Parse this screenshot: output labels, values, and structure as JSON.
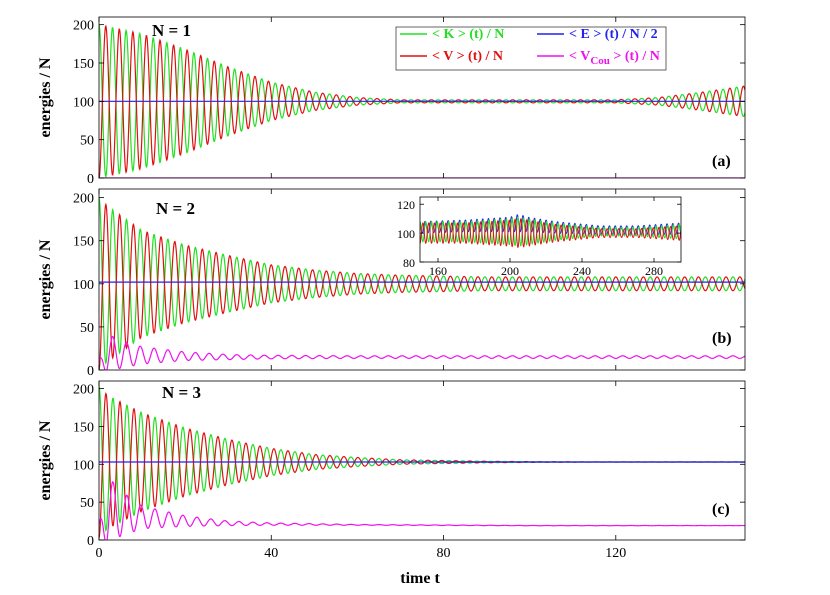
{
  "colors": {
    "kinetic": "#22e022",
    "potential": "#e01010",
    "total": "#2222ee",
    "coulomb": "#ee11ee"
  },
  "legend": [
    {
      "key": "kinetic",
      "text": "< K > (t) / N"
    },
    {
      "key": "total",
      "text": "< E > (t) / N / 2"
    },
    {
      "key": "potential",
      "text": "< V > (t) / N"
    },
    {
      "key": "coulomb",
      "text_pre": "< V",
      "text_sub": "Cou",
      "text_post": " > (t) / N"
    }
  ],
  "xlabel": "time t",
  "chart_data": [
    {
      "type": "line",
      "title": "N = 1",
      "panel_label": "(a)",
      "ylabel": "energies / N",
      "xlim": [
        0,
        150
      ],
      "ylim": [
        0,
        210
      ],
      "xticks": [
        "0",
        "40",
        "80",
        "120"
      ],
      "xtick_values": [
        0,
        40,
        80,
        120
      ],
      "yticks": [
        "0",
        "50",
        "100",
        "150",
        "200"
      ],
      "ytick_values": [
        0,
        50,
        100,
        150,
        200
      ],
      "period": 3.15,
      "series": [
        {
          "key": "kinetic",
          "x": [
            0,
            10,
            20,
            30,
            40,
            50,
            60,
            70,
            80,
            90,
            100,
            110,
            120,
            130,
            140,
            150
          ],
          "center": [
            100,
            100,
            100,
            100,
            100,
            100,
            100,
            100,
            100,
            100,
            100,
            100,
            100,
            100,
            100,
            100
          ],
          "amplitude": [
            100,
            88,
            68,
            45,
            25,
            12,
            5,
            2,
            2,
            2,
            2,
            2,
            2,
            5,
            12,
            20
          ],
          "phase": 0
        },
        {
          "key": "potential",
          "x": [
            0,
            10,
            20,
            30,
            40,
            50,
            60,
            70,
            80,
            90,
            100,
            110,
            120,
            130,
            140,
            150
          ],
          "center": [
            100,
            100,
            100,
            100,
            100,
            100,
            100,
            100,
            100,
            100,
            100,
            100,
            100,
            100,
            100,
            100
          ],
          "amplitude": [
            100,
            88,
            68,
            45,
            25,
            12,
            5,
            2,
            2,
            2,
            2,
            2,
            2,
            5,
            12,
            20
          ],
          "phase": 180
        },
        {
          "key": "total",
          "x": [
            0,
            150
          ],
          "values": [
            100,
            100
          ]
        },
        {
          "key": "coulomb",
          "x": [
            0,
            150
          ],
          "values": [
            0,
            0
          ]
        }
      ]
    },
    {
      "type": "line",
      "title": "N = 2",
      "panel_label": "(b)",
      "ylabel": "energies / N",
      "xlim": [
        0,
        150
      ],
      "ylim": [
        0,
        210
      ],
      "xticks": [
        "0",
        "40",
        "80",
        "120"
      ],
      "xtick_values": [
        0,
        40,
        80,
        120
      ],
      "yticks": [
        "0",
        "50",
        "100",
        "150",
        "200"
      ],
      "ytick_values": [
        0,
        50,
        100,
        150,
        200
      ],
      "period": 3.2,
      "series": [
        {
          "key": "kinetic",
          "x": [
            0,
            2,
            10,
            20,
            30,
            40,
            50,
            60,
            70,
            80,
            90,
            100,
            110,
            120,
            130,
            140,
            150
          ],
          "center": [
            100,
            100,
            100,
            100,
            100,
            100,
            100,
            100,
            100,
            100,
            100,
            100,
            100,
            100,
            100,
            100,
            100
          ],
          "amplitude": [
            100,
            90,
            62,
            45,
            33,
            22,
            16,
            12,
            10,
            9,
            8,
            8,
            8,
            8,
            8,
            8,
            8
          ],
          "phase": 0
        },
        {
          "key": "potential",
          "x": [
            0,
            2,
            10,
            20,
            30,
            40,
            50,
            60,
            70,
            80,
            90,
            100,
            110,
            120,
            130,
            140,
            150
          ],
          "center": [
            100,
            100,
            100,
            100,
            100,
            100,
            100,
            100,
            100,
            100,
            100,
            100,
            100,
            100,
            100,
            100,
            100
          ],
          "amplitude": [
            100,
            90,
            62,
            45,
            33,
            22,
            16,
            12,
            10,
            9,
            8,
            8,
            8,
            8,
            8,
            8,
            8
          ],
          "phase": 180
        },
        {
          "key": "total",
          "x": [
            0,
            150
          ],
          "values": [
            102,
            102
          ]
        },
        {
          "key": "coulomb",
          "x": [
            0,
            2,
            5,
            10,
            20,
            30,
            40,
            60,
            100,
            150
          ],
          "center": [
            5,
            20,
            18,
            17,
            16,
            15,
            15,
            15,
            15,
            15
          ],
          "amplitude": [
            5,
            22,
            16,
            10,
            5,
            3,
            2,
            1.5,
            1.5,
            1.5
          ],
          "phase": 0
        }
      ]
    },
    {
      "type": "line",
      "title": "N = 3",
      "panel_label": "(c)",
      "ylabel": "energies / N",
      "xlim": [
        0,
        150
      ],
      "ylim": [
        0,
        210
      ],
      "xticks": [
        "0",
        "40",
        "80",
        "120"
      ],
      "xtick_values": [
        0,
        40,
        80,
        120
      ],
      "yticks": [
        "0",
        "50",
        "100",
        "150",
        "200"
      ],
      "ytick_values": [
        0,
        50,
        100,
        150,
        200
      ],
      "period": 3.25,
      "series": [
        {
          "key": "kinetic",
          "x": [
            0,
            2,
            10,
            20,
            30,
            40,
            50,
            60,
            70,
            80,
            90,
            100,
            110,
            120,
            150
          ],
          "center": [
            103,
            103,
            103,
            103,
            103,
            103,
            103,
            103,
            103,
            103,
            103,
            103,
            103,
            103,
            103
          ],
          "amplitude": [
            100,
            88,
            65,
            45,
            30,
            18,
            10,
            6,
            3,
            2,
            1,
            0.5,
            0.3,
            0.2,
            0.2
          ],
          "phase": 0
        },
        {
          "key": "potential",
          "x": [
            0,
            2,
            10,
            20,
            30,
            40,
            50,
            60,
            70,
            80,
            90,
            100,
            110,
            120,
            150
          ],
          "center": [
            103,
            103,
            103,
            103,
            103,
            103,
            103,
            103,
            103,
            103,
            103,
            103,
            103,
            103,
            103
          ],
          "amplitude": [
            100,
            88,
            65,
            45,
            30,
            18,
            10,
            6,
            3,
            2,
            1,
            0.5,
            0.3,
            0.2,
            0.2
          ],
          "phase": 180
        },
        {
          "key": "total",
          "x": [
            0,
            150
          ],
          "values": [
            103,
            103
          ]
        },
        {
          "key": "coulomb",
          "x": [
            0,
            2,
            5,
            10,
            20,
            30,
            40,
            60,
            100,
            150
          ],
          "center": [
            10,
            40,
            35,
            30,
            25,
            22,
            21,
            20,
            19,
            19
          ],
          "amplitude": [
            10,
            45,
            30,
            15,
            7,
            3,
            1.5,
            0.5,
            0.2,
            0.1
          ],
          "phase": 0
        }
      ]
    },
    {
      "type": "line",
      "title": "",
      "panel_label": "",
      "inset_of": "(b)",
      "xlim": [
        150,
        295
      ],
      "ylim": [
        80,
        125
      ],
      "xticks": [
        "160",
        "200",
        "240",
        "280"
      ],
      "xtick_values": [
        160,
        200,
        240,
        280
      ],
      "yticks": [
        "80",
        "100",
        "120"
      ],
      "ytick_values": [
        80,
        100,
        120
      ],
      "period": 3.2,
      "series": [
        {
          "key": "total",
          "x": [
            150,
            175,
            200,
            205,
            210,
            225,
            250,
            270,
            295
          ],
          "center": [
            104,
            105,
            106,
            107,
            106,
            104,
            102,
            102,
            103
          ],
          "amplitude": [
            4,
            4,
            5,
            6,
            5,
            4,
            3,
            3,
            4
          ],
          "phase": 40
        },
        {
          "key": "kinetic",
          "x": [
            150,
            175,
            200,
            205,
            210,
            225,
            250,
            270,
            295
          ],
          "center": [
            101,
            101,
            101,
            101,
            101,
            101,
            101,
            101,
            101
          ],
          "amplitude": [
            7,
            7,
            9,
            10,
            9,
            6,
            3,
            3,
            5
          ],
          "phase": 0
        },
        {
          "key": "potential",
          "x": [
            150,
            175,
            200,
            205,
            210,
            225,
            250,
            270,
            295
          ],
          "center": [
            100,
            100,
            100,
            100,
            100,
            100,
            100,
            100,
            100
          ],
          "amplitude": [
            7,
            7,
            9,
            10,
            9,
            6,
            3,
            3,
            5
          ],
          "phase": 180
        }
      ]
    }
  ]
}
